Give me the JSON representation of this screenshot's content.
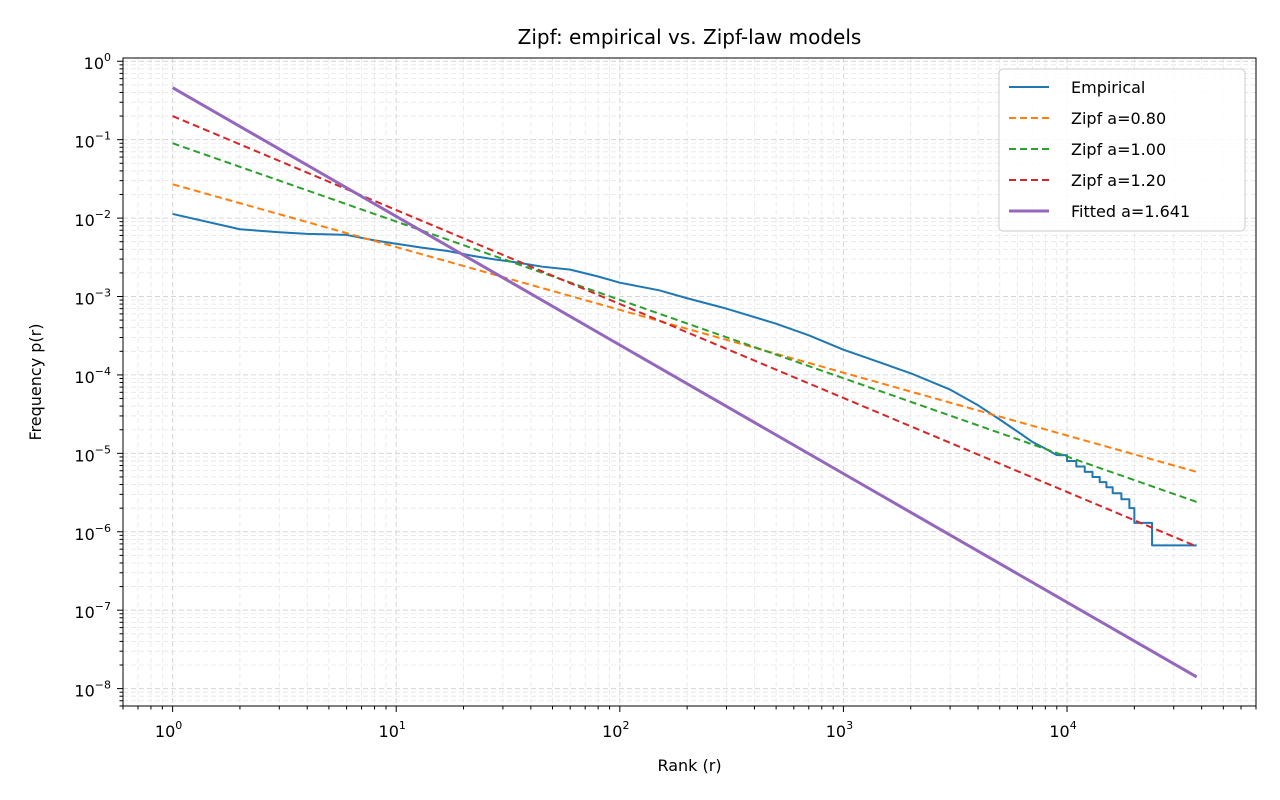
{
  "chart_data": {
    "type": "line",
    "title": "Zipf: empirical vs. Zipf-law models",
    "xlabel": "Rank (r)",
    "ylabel": "Frequency p(r)",
    "xscale": "log",
    "yscale": "log",
    "xlim": [
      0.6,
      70000
    ],
    "ylim": [
      6e-09,
      1.1
    ],
    "x_ticks": [
      {
        "value": 1,
        "base": "10",
        "exp": "0"
      },
      {
        "value": 10,
        "base": "10",
        "exp": "1"
      },
      {
        "value": 100,
        "base": "10",
        "exp": "2"
      },
      {
        "value": 1000,
        "base": "10",
        "exp": "3"
      },
      {
        "value": 10000,
        "base": "10",
        "exp": "4"
      }
    ],
    "y_ticks": [
      {
        "value": 1,
        "base": "10",
        "exp": "0"
      },
      {
        "value": 0.1,
        "base": "10",
        "exp": "−1"
      },
      {
        "value": 0.01,
        "base": "10",
        "exp": "−2"
      },
      {
        "value": 0.001,
        "base": "10",
        "exp": "−3"
      },
      {
        "value": 0.0001,
        "base": "10",
        "exp": "−4"
      },
      {
        "value": 1e-05,
        "base": "10",
        "exp": "−5"
      },
      {
        "value": 1e-06,
        "base": "10",
        "exp": "−6"
      },
      {
        "value": 1e-07,
        "base": "10",
        "exp": "−7"
      },
      {
        "value": 1e-08,
        "base": "10",
        "exp": "−8"
      }
    ],
    "grid": "on (major and minor, dashed)",
    "legend_position": "top-right",
    "series": [
      {
        "name": "Empirical",
        "color": "#1f77b4",
        "style": "solid",
        "x": [
          1,
          2,
          3,
          4,
          5,
          6,
          8,
          10,
          13,
          17,
          22,
          27,
          35,
          45,
          60,
          80,
          100,
          150,
          200,
          300,
          500,
          700,
          1000,
          1500,
          2000,
          3000,
          4000,
          5000,
          6000,
          7000,
          8000,
          9000,
          10000,
          11000,
          12000,
          13000,
          14000,
          15000,
          16000,
          17500,
          19000,
          20000,
          24000,
          30000,
          38000
        ],
        "y": [
          0.0113,
          0.0072,
          0.0066,
          0.0063,
          0.0062,
          0.0061,
          0.0052,
          0.0047,
          0.0042,
          0.0038,
          0.0033,
          0.003,
          0.0027,
          0.0024,
          0.0022,
          0.0018,
          0.0015,
          0.0012,
          0.00095,
          0.0007,
          0.00045,
          0.00032,
          0.00021,
          0.00014,
          0.000105,
          6.5e-05,
          4.1e-05,
          2.7e-05,
          1.9e-05,
          1.4e-05,
          1.15e-05,
          9.5e-06,
          8e-06,
          6.8e-06,
          5.8e-06,
          5e-06,
          4.3e-06,
          3.7e-06,
          3.1e-06,
          2.6e-06,
          2e-06,
          1.3e-06,
          6.7e-07,
          6.7e-07,
          6.7e-07
        ]
      },
      {
        "name": "Zipf a=0.80",
        "color": "#ff7f0e",
        "style": "dashed",
        "x": [
          1,
          38000
        ],
        "y": [
          0.027,
          5.8e-06
        ]
      },
      {
        "name": "Zipf a=1.00",
        "color": "#2ca02c",
        "style": "dashed",
        "x": [
          1,
          38000
        ],
        "y": [
          0.09,
          2.4e-06
        ]
      },
      {
        "name": "Zipf a=1.20",
        "color": "#d62728",
        "style": "dashed",
        "x": [
          1,
          38000
        ],
        "y": [
          0.2,
          6.5e-07
        ]
      },
      {
        "name": "Fitted a=1.641",
        "color": "#9467bd",
        "style": "solid",
        "x": [
          1,
          38000
        ],
        "y": [
          0.46,
          1.41e-08
        ]
      }
    ]
  }
}
